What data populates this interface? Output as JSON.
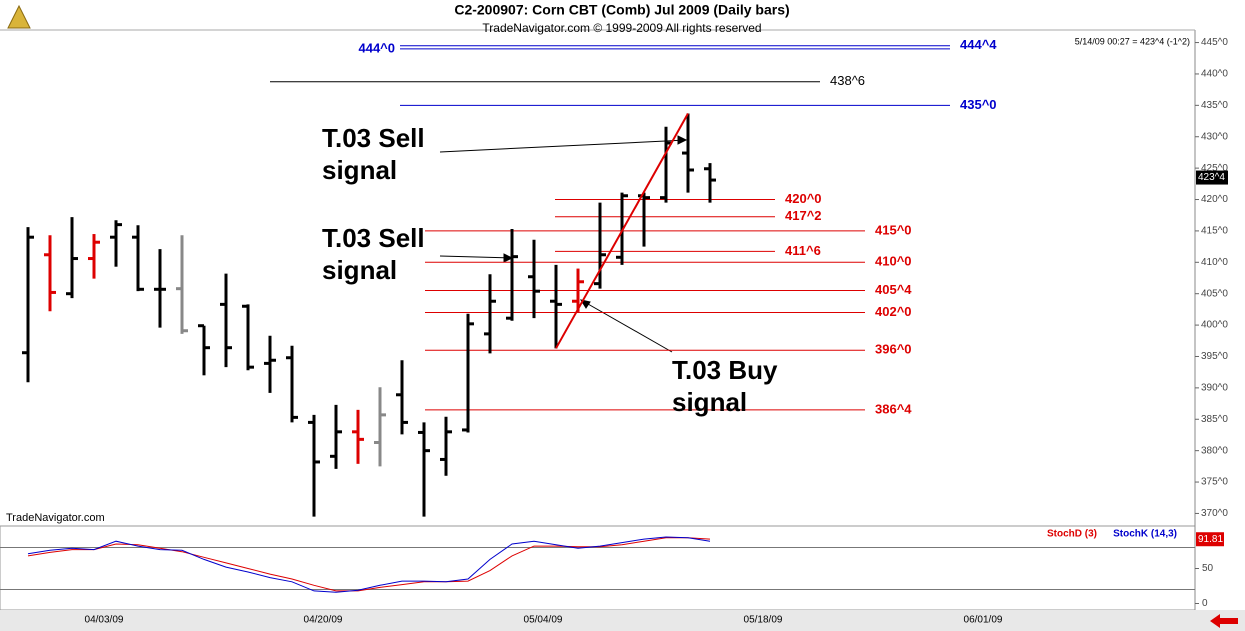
{
  "chart_data": [
    {
      "type": "ohlc",
      "title": "C2-200907:  Corn CBT (Comb) Jul 2009  (Daily bars)",
      "subtitle": "TradeNavigator.com © 1999-2009 All rights reserved",
      "info": "5/14/09 00:27 = 423^4 (-1^2)",
      "watermark": "TradeNavigator.com",
      "last_price": {
        "value": 423.5,
        "label": "423^4"
      },
      "ylim": [
        368,
        447
      ],
      "yticks": [
        {
          "value": 370,
          "label": "370^0"
        },
        {
          "value": 375,
          "label": "375^0"
        },
        {
          "value": 380,
          "label": "380^0"
        },
        {
          "value": 385,
          "label": "385^0"
        },
        {
          "value": 390,
          "label": "390^0"
        },
        {
          "value": 395,
          "label": "395^0"
        },
        {
          "value": 400,
          "label": "400^0"
        },
        {
          "value": 405,
          "label": "405^0"
        },
        {
          "value": 410,
          "label": "410^0"
        },
        {
          "value": 415,
          "label": "415^0"
        },
        {
          "value": 420,
          "label": "420^0"
        },
        {
          "value": 425,
          "label": "425^0"
        },
        {
          "value": 430,
          "label": "430^0"
        },
        {
          "value": 435,
          "label": "435^0"
        },
        {
          "value": 440,
          "label": "440^0"
        },
        {
          "value": 445,
          "label": "445^0"
        }
      ],
      "xticks": [
        "04/03/09",
        "04/20/09",
        "05/04/09",
        "05/18/09",
        "06/01/09"
      ],
      "bars": [
        {
          "open": 395.6,
          "high": 415.6,
          "low": 390.9,
          "close": 414.0,
          "color": "#000000"
        },
        {
          "open": 411.2,
          "high": 414.3,
          "low": 402.2,
          "close": 405.2,
          "color": "#dd0000"
        },
        {
          "open": 405.0,
          "high": 417.2,
          "low": 404.3,
          "close": 410.6,
          "color": "#000000"
        },
        {
          "open": 410.6,
          "high": 414.5,
          "low": 407.4,
          "close": 413.2,
          "color": "#dd0000"
        },
        {
          "open": 414.0,
          "high": 416.7,
          "low": 409.3,
          "close": 416.0,
          "color": "#000000"
        },
        {
          "open": 414.0,
          "high": 415.9,
          "low": 405.4,
          "close": 405.7,
          "color": "#000000"
        },
        {
          "open": 405.7,
          "high": 412.1,
          "low": 399.6,
          "close": 405.7,
          "color": "#000000"
        },
        {
          "open": 405.8,
          "high": 414.3,
          "low": 398.6,
          "close": 399.1,
          "color": "#888888"
        },
        {
          "open": 399.9,
          "high": 399.9,
          "low": 392.0,
          "close": 396.4,
          "color": "#000000"
        },
        {
          "open": 403.3,
          "high": 408.2,
          "low": 393.3,
          "close": 396.4,
          "color": "#000000"
        },
        {
          "open": 403.0,
          "high": 403.3,
          "low": 392.8,
          "close": 393.3,
          "color": "#000000"
        },
        {
          "open": 393.9,
          "high": 398.3,
          "low": 389.2,
          "close": 394.4,
          "color": "#000000"
        },
        {
          "open": 394.8,
          "high": 396.7,
          "low": 384.5,
          "close": 385.3,
          "color": "#000000"
        },
        {
          "open": 384.5,
          "high": 385.7,
          "low": 369.5,
          "close": 378.2,
          "color": "#000000"
        },
        {
          "open": 379.1,
          "high": 387.3,
          "low": 377.1,
          "close": 383.0,
          "color": "#000000"
        },
        {
          "open": 383.0,
          "high": 386.5,
          "low": 377.9,
          "close": 381.8,
          "color": "#dd0000"
        },
        {
          "open": 381.3,
          "high": 390.1,
          "low": 377.5,
          "close": 385.7,
          "color": "#888888"
        },
        {
          "open": 388.9,
          "high": 394.4,
          "low": 382.6,
          "close": 384.5,
          "color": "#000000"
        },
        {
          "open": 382.9,
          "high": 384.5,
          "low": 369.5,
          "close": 380.0,
          "color": "#000000"
        },
        {
          "open": 378.6,
          "high": 385.4,
          "low": 376.0,
          "close": 383.0,
          "color": "#000000"
        },
        {
          "open": 383.3,
          "high": 401.8,
          "low": 382.9,
          "close": 400.2,
          "color": "#000000"
        },
        {
          "open": 398.6,
          "high": 408.1,
          "low": 395.5,
          "close": 403.8,
          "color": "#000000"
        },
        {
          "open": 401.1,
          "high": 415.3,
          "low": 400.7,
          "close": 410.9,
          "color": "#000000"
        },
        {
          "open": 407.7,
          "high": 413.6,
          "low": 401.1,
          "close": 405.4,
          "color": "#000000"
        },
        {
          "open": 403.8,
          "high": 409.6,
          "low": 396.3,
          "close": 403.3,
          "color": "#000000"
        },
        {
          "open": 403.8,
          "high": 409.0,
          "low": 402.1,
          "close": 406.9,
          "color": "#dd0000"
        },
        {
          "open": 406.6,
          "high": 419.5,
          "low": 405.8,
          "close": 411.2,
          "color": "#000000"
        },
        {
          "open": 410.8,
          "high": 421.1,
          "low": 409.6,
          "close": 420.6,
          "color": "#000000"
        },
        {
          "open": 420.6,
          "high": 421.1,
          "low": 412.5,
          "close": 420.3,
          "color": "#000000"
        },
        {
          "open": 420.3,
          "high": 431.6,
          "low": 419.5,
          "close": 429.0,
          "color": "#000000"
        },
        {
          "open": 427.4,
          "high": 433.7,
          "low": 421.1,
          "close": 424.7,
          "color": "#000000"
        },
        {
          "open": 424.9,
          "high": 425.8,
          "low": 419.5,
          "close": 423.1,
          "color": "#000000"
        }
      ],
      "levels": [
        {
          "value": 444.5,
          "label": "444^4",
          "color": "#0000cc"
        },
        {
          "value": 444,
          "label": "444^0",
          "color": "#0000cc"
        },
        {
          "value": 438.75,
          "label": "438^6",
          "color": "#000000"
        },
        {
          "value": 435,
          "label": "435^0",
          "color": "#0000cc"
        },
        {
          "value": 420,
          "label": "420^0",
          "color": "#dd0000"
        },
        {
          "value": 417.25,
          "label": "417^2",
          "color": "#dd0000"
        },
        {
          "value": 415,
          "label": "415^0",
          "color": "#dd0000"
        },
        {
          "value": 411.75,
          "label": "411^6",
          "color": "#dd0000"
        },
        {
          "value": 410,
          "label": "410^0",
          "color": "#dd0000"
        },
        {
          "value": 405.5,
          "label": "405^4",
          "color": "#dd0000"
        },
        {
          "value": 402,
          "label": "402^0",
          "color": "#dd0000"
        },
        {
          "value": 396,
          "label": "396^0",
          "color": "#dd0000"
        },
        {
          "value": 386.5,
          "label": "386^4",
          "color": "#dd0000"
        }
      ],
      "annotations": [
        [
          "T.03 Sell",
          "signal"
        ],
        [
          "T.03 Sell",
          "signal"
        ],
        [
          "T.03 Buy",
          "signal"
        ]
      ]
    },
    {
      "type": "line",
      "ylim": [
        -5,
        105
      ],
      "yticks": [
        0,
        50
      ],
      "levels": [
        20,
        80
      ],
      "last_value": {
        "value": 91.81,
        "label": "91.81"
      },
      "series": [
        {
          "name": "StochD (3)",
          "color": "#dd0000",
          "values": [
            68,
            73,
            77,
            77,
            85,
            84,
            79,
            74,
            66,
            58,
            50,
            42,
            35,
            26,
            18,
            18,
            23,
            27,
            31,
            31,
            32,
            47,
            68,
            82,
            82,
            81,
            81,
            84,
            89,
            94,
            94,
            92
          ]
        },
        {
          "name": "StochK (14,3)",
          "color": "#0000cc",
          "values": [
            71,
            76,
            79,
            77,
            89,
            82,
            77,
            76,
            63,
            52,
            45,
            37,
            31,
            18,
            16,
            19,
            26,
            32,
            32,
            31,
            35,
            63,
            85,
            89,
            84,
            79,
            82,
            87,
            92,
            95,
            94,
            89
          ]
        }
      ]
    }
  ]
}
